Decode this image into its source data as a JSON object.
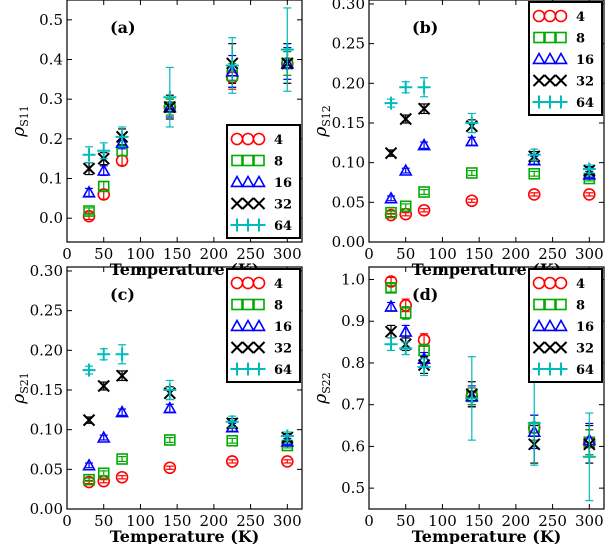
{
  "figure": {
    "xlabel": "Temperature (K)",
    "x_ticks": [
      0,
      50,
      100,
      150,
      200,
      250,
      300
    ]
  },
  "legend_labels": [
    "4",
    "8",
    "16",
    "32",
    "64"
  ],
  "chart_data": [
    {
      "type": "scatter",
      "panel_label": "(a)",
      "ylabel_base": "ρ",
      "ylabel_sub": "S11",
      "xlabel": "Temperature (K)",
      "xlim": [
        0,
        320
      ],
      "ylim": [
        -0.06,
        0.55
      ],
      "y_ticks": [
        "0.0",
        "0.1",
        "0.2",
        "0.3",
        "0.4",
        "0.5"
      ],
      "y_tick_values": [
        0.0,
        0.1,
        0.2,
        0.3,
        0.4,
        0.5
      ],
      "x_ticks": [
        0,
        50,
        100,
        150,
        200,
        250,
        300
      ],
      "legend_position": "lower-right",
      "series": [
        {
          "name": "4",
          "color": "#ff0000",
          "marker": "circle",
          "x": [
            30,
            50,
            75,
            140,
            225,
            300
          ],
          "y": [
            0.005,
            0.06,
            0.145,
            0.28,
            0.355,
            0.39
          ],
          "err": [
            0.008,
            0.012,
            0.012,
            0.02,
            0.03,
            0.03
          ]
        },
        {
          "name": "8",
          "color": "#00aa00",
          "marker": "square",
          "x": [
            30,
            50,
            75,
            140,
            225,
            300
          ],
          "y": [
            0.018,
            0.08,
            0.17,
            0.28,
            0.36,
            0.39
          ],
          "err": [
            0.008,
            0.012,
            0.012,
            0.02,
            0.03,
            0.03
          ]
        },
        {
          "name": "16",
          "color": "#0000ff",
          "marker": "triangle",
          "x": [
            30,
            50,
            75,
            140,
            225,
            300
          ],
          "y": [
            0.065,
            0.12,
            0.19,
            0.28,
            0.37,
            0.39
          ],
          "err": [
            0.01,
            0.012,
            0.015,
            0.025,
            0.04,
            0.04
          ]
        },
        {
          "name": "32",
          "color": "#000000",
          "marker": "x",
          "x": [
            30,
            50,
            75,
            140,
            225,
            300
          ],
          "y": [
            0.125,
            0.15,
            0.205,
            0.28,
            0.39,
            0.39
          ],
          "err": [
            0.015,
            0.015,
            0.02,
            0.03,
            0.05,
            0.05
          ]
        },
        {
          "name": "64",
          "color": "#00bbbb",
          "marker": "plus",
          "x": [
            30,
            50,
            75,
            140,
            225,
            300
          ],
          "y": [
            0.16,
            0.17,
            0.205,
            0.305,
            0.385,
            0.425
          ],
          "err": [
            0.02,
            0.02,
            0.025,
            0.075,
            0.07,
            0.105
          ]
        }
      ]
    },
    {
      "type": "scatter",
      "panel_label": "(b)",
      "ylabel_base": "ρ",
      "ylabel_sub": "S12",
      "xlabel": "Temperature (K)",
      "xlim": [
        0,
        320
      ],
      "ylim": [
        0.0,
        0.305
      ],
      "y_ticks": [
        "0.00",
        "0.05",
        "0.10",
        "0.15",
        "0.20",
        "0.25",
        "0.30"
      ],
      "y_tick_values": [
        0.0,
        0.05,
        0.1,
        0.15,
        0.2,
        0.25,
        0.3
      ],
      "x_ticks": [
        0,
        50,
        100,
        150,
        200,
        250,
        300
      ],
      "legend_position": "top-right",
      "series": [
        {
          "name": "4",
          "color": "#ff0000",
          "marker": "circle",
          "x": [
            30,
            50,
            75,
            140,
            225,
            300
          ],
          "y": [
            0.034,
            0.035,
            0.04,
            0.052,
            0.06,
            0.06
          ],
          "err": [
            0.002,
            0.002,
            0.002,
            0.002,
            0.002,
            0.002
          ]
        },
        {
          "name": "8",
          "color": "#00aa00",
          "marker": "square",
          "x": [
            30,
            50,
            75,
            140,
            225,
            300
          ],
          "y": [
            0.037,
            0.045,
            0.063,
            0.087,
            0.086,
            0.08
          ],
          "err": [
            0.002,
            0.003,
            0.003,
            0.003,
            0.003,
            0.003
          ]
        },
        {
          "name": "16",
          "color": "#0000ff",
          "marker": "triangle",
          "x": [
            30,
            50,
            75,
            140,
            225,
            300
          ],
          "y": [
            0.055,
            0.09,
            0.122,
            0.127,
            0.103,
            0.085
          ],
          "err": [
            0.003,
            0.003,
            0.004,
            0.005,
            0.005,
            0.004
          ]
        },
        {
          "name": "32",
          "color": "#000000",
          "marker": "x",
          "x": [
            30,
            50,
            75,
            140,
            225,
            300
          ],
          "y": [
            0.112,
            0.155,
            0.168,
            0.146,
            0.108,
            0.09
          ],
          "err": [
            0.004,
            0.005,
            0.006,
            0.008,
            0.006,
            0.005
          ]
        },
        {
          "name": "64",
          "color": "#00bbbb",
          "marker": "plus",
          "x": [
            30,
            50,
            75,
            140,
            225,
            300
          ],
          "y": [
            0.175,
            0.195,
            0.195,
            0.15,
            0.11,
            0.092
          ],
          "err": [
            0.005,
            0.007,
            0.012,
            0.012,
            0.007,
            0.005
          ]
        }
      ]
    },
    {
      "type": "scatter",
      "panel_label": "(c)",
      "ylabel_base": "ρ",
      "ylabel_sub": "S21",
      "xlabel": "Temperature (K)",
      "xlim": [
        0,
        320
      ],
      "ylim": [
        0.0,
        0.305
      ],
      "y_ticks": [
        "0.00",
        "0.05",
        "0.10",
        "0.15",
        "0.20",
        "0.25",
        "0.30"
      ],
      "y_tick_values": [
        0.0,
        0.05,
        0.1,
        0.15,
        0.2,
        0.25,
        0.3
      ],
      "x_ticks": [
        0,
        50,
        100,
        150,
        200,
        250,
        300
      ],
      "legend_position": "top-right",
      "series": [
        {
          "name": "4",
          "color": "#ff0000",
          "marker": "circle",
          "x": [
            30,
            50,
            75,
            140,
            225,
            300
          ],
          "y": [
            0.034,
            0.035,
            0.04,
            0.052,
            0.06,
            0.06
          ],
          "err": [
            0.002,
            0.002,
            0.002,
            0.002,
            0.002,
            0.002
          ]
        },
        {
          "name": "8",
          "color": "#00aa00",
          "marker": "square",
          "x": [
            30,
            50,
            75,
            140,
            225,
            300
          ],
          "y": [
            0.037,
            0.045,
            0.063,
            0.087,
            0.086,
            0.08
          ],
          "err": [
            0.002,
            0.003,
            0.003,
            0.003,
            0.003,
            0.003
          ]
        },
        {
          "name": "16",
          "color": "#0000ff",
          "marker": "triangle",
          "x": [
            30,
            50,
            75,
            140,
            225,
            300
          ],
          "y": [
            0.055,
            0.09,
            0.122,
            0.127,
            0.103,
            0.085
          ],
          "err": [
            0.003,
            0.003,
            0.004,
            0.005,
            0.005,
            0.004
          ]
        },
        {
          "name": "32",
          "color": "#000000",
          "marker": "x",
          "x": [
            30,
            50,
            75,
            140,
            225,
            300
          ],
          "y": [
            0.112,
            0.155,
            0.168,
            0.146,
            0.108,
            0.09
          ],
          "err": [
            0.004,
            0.005,
            0.006,
            0.008,
            0.006,
            0.005
          ]
        },
        {
          "name": "64",
          "color": "#00bbbb",
          "marker": "plus",
          "x": [
            30,
            50,
            75,
            140,
            225,
            300
          ],
          "y": [
            0.175,
            0.195,
            0.195,
            0.15,
            0.11,
            0.092
          ],
          "err": [
            0.005,
            0.007,
            0.012,
            0.012,
            0.007,
            0.005
          ]
        }
      ]
    },
    {
      "type": "scatter",
      "panel_label": "(d)",
      "ylabel_base": "ρ",
      "ylabel_sub": "S22",
      "xlabel": "Temperature (K)",
      "xlim": [
        0,
        320
      ],
      "ylim": [
        0.45,
        1.03
      ],
      "y_ticks": [
        "0.5",
        "0.6",
        "0.7",
        "0.8",
        "0.9",
        "1.0"
      ],
      "y_tick_values": [
        0.5,
        0.6,
        0.7,
        0.8,
        0.9,
        1.0
      ],
      "x_ticks": [
        0,
        50,
        100,
        150,
        200,
        250,
        300
      ],
      "legend_position": "top-right",
      "series": [
        {
          "name": "4",
          "color": "#ff0000",
          "marker": "circle",
          "x": [
            30,
            50,
            75,
            140,
            225,
            300
          ],
          "y": [
            0.995,
            0.938,
            0.855,
            0.72,
            0.645,
            0.61
          ],
          "err": [
            0.01,
            0.015,
            0.015,
            0.02,
            0.03,
            0.03
          ]
        },
        {
          "name": "8",
          "color": "#00aa00",
          "marker": "square",
          "x": [
            30,
            50,
            75,
            140,
            225,
            300
          ],
          "y": [
            0.98,
            0.92,
            0.83,
            0.72,
            0.645,
            0.61
          ],
          "err": [
            0.01,
            0.015,
            0.015,
            0.02,
            0.03,
            0.03
          ]
        },
        {
          "name": "16",
          "color": "#0000ff",
          "marker": "triangle",
          "x": [
            30,
            50,
            75,
            140,
            225,
            300
          ],
          "y": [
            0.935,
            0.875,
            0.81,
            0.72,
            0.635,
            0.615
          ],
          "err": [
            0.01,
            0.015,
            0.015,
            0.025,
            0.04,
            0.04
          ]
        },
        {
          "name": "32",
          "color": "#000000",
          "marker": "x",
          "x": [
            30,
            50,
            75,
            140,
            225,
            300
          ],
          "y": [
            0.875,
            0.845,
            0.795,
            0.725,
            0.605,
            0.605
          ],
          "err": [
            0.015,
            0.015,
            0.02,
            0.03,
            0.045,
            0.045
          ]
        },
        {
          "name": "64",
          "color": "#00bbbb",
          "marker": "plus",
          "x": [
            30,
            50,
            75,
            140,
            225,
            300
          ],
          "y": [
            0.845,
            0.835,
            0.79,
            0.715,
            0.655,
            0.575
          ],
          "err": [
            0.015,
            0.015,
            0.02,
            0.1,
            0.1,
            0.105
          ]
        }
      ]
    }
  ]
}
